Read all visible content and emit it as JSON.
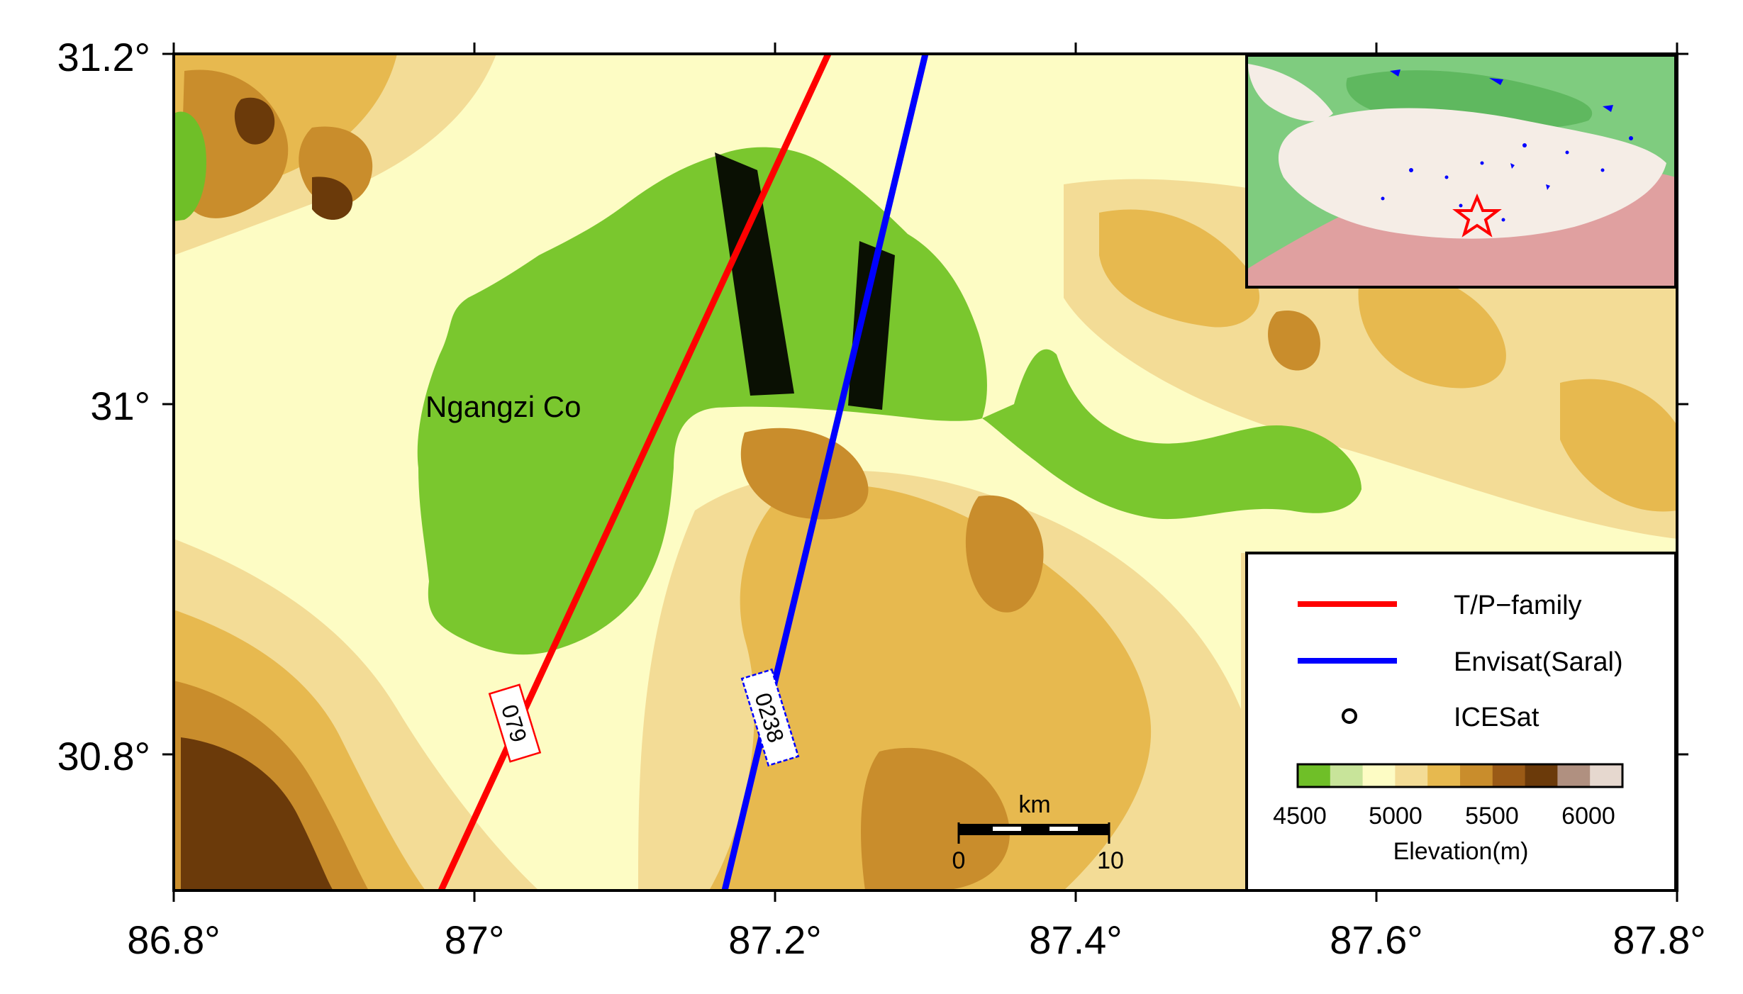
{
  "map": {
    "lake_name": "Ngangzi Co",
    "x_ticks": [
      "86.8°",
      "87°",
      "87.2°",
      "87.4°",
      "87.6°",
      "87.8°"
    ],
    "y_ticks": [
      "31.2°",
      "31°",
      "30.8°"
    ],
    "tracks": [
      {
        "label": "079",
        "color": "#ff0000"
      },
      {
        "label": "0238",
        "color": "#0000ff"
      }
    ]
  },
  "legend": {
    "items": [
      {
        "label": "T/P−family",
        "color": "#ff0000"
      },
      {
        "label": "Envisat(Saral)",
        "color": "#0000ff"
      },
      {
        "label": "ICESat",
        "color": "#000000"
      }
    ],
    "colorbar_ticks": [
      "4500",
      "5000",
      "5500",
      "6000"
    ],
    "colorbar_title": "Elevation(m)",
    "colorbar_colors": [
      "#6fbf28",
      "#c8e49a",
      "#fdfcc4",
      "#f3dc96",
      "#e7b94f",
      "#c98d2c",
      "#9a5a16",
      "#6b3a0a",
      "#b09080",
      "#e6d8cf"
    ]
  },
  "scalebar": {
    "unit": "km",
    "start": "0",
    "end": "10"
  }
}
